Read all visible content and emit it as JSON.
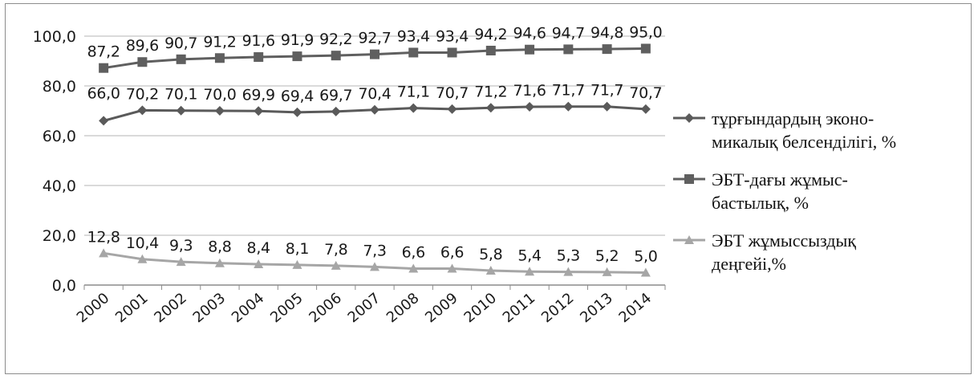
{
  "colors": {
    "activity": "#5a5a5a",
    "employment": "#5f5f5f",
    "unemployment": "#a6a6a6",
    "gridline": "#b5b5b5",
    "axis": "#8c8c8c"
  },
  "chart_data": {
    "type": "line",
    "x": [
      "2000",
      "2001",
      "2002",
      "2003",
      "2004",
      "2005",
      "2006",
      "2007",
      "2008",
      "2009",
      "2010",
      "2011",
      "2012",
      "2013",
      "2014"
    ],
    "ylim": [
      0,
      100
    ],
    "yticks": [
      "0,0",
      "20,0",
      "40,0",
      "60,0",
      "80,0",
      "100,0"
    ],
    "grid": true,
    "legend_position": "right",
    "series": [
      {
        "name": "тұрғындардың эконо-микалық белсенділігі, %",
        "marker": "diamond",
        "values": [
          66.0,
          70.2,
          70.1,
          70.0,
          69.9,
          69.4,
          69.7,
          70.4,
          71.1,
          70.7,
          71.2,
          71.6,
          71.7,
          71.7,
          70.7
        ],
        "labels": [
          "66,0",
          "70,2",
          "70,1",
          "70,0",
          "69,9",
          "69,4",
          "69,7",
          "70,4",
          "71,1",
          "70,7",
          "71,2",
          "71,6",
          "71,7",
          "71,7",
          "70,7"
        ]
      },
      {
        "name": "ЭБТ-дағы жұмыс-бастылық, %",
        "marker": "square",
        "values": [
          87.2,
          89.6,
          90.7,
          91.2,
          91.6,
          91.9,
          92.2,
          92.7,
          93.4,
          93.4,
          94.2,
          94.6,
          94.7,
          94.8,
          95.0
        ],
        "labels": [
          "87,2",
          "89,6",
          "90,7",
          "91,2",
          "91,6",
          "91,9",
          "92,2",
          "92,7",
          "93,4",
          "93,4",
          "94,2",
          "94,6",
          "94,7",
          "94,8",
          "95,0"
        ]
      },
      {
        "name": "ЭБТ жұмыссыздық деңгейі,%",
        "marker": "triangle",
        "values": [
          12.8,
          10.4,
          9.3,
          8.8,
          8.4,
          8.1,
          7.8,
          7.3,
          6.6,
          6.6,
          5.8,
          5.4,
          5.3,
          5.2,
          5.0
        ],
        "labels": [
          "12,8",
          "10,4",
          "9,3",
          "8,8",
          "8,4",
          "8,1",
          "7,8",
          "7,3",
          "6,6",
          "6,6",
          "5,8",
          "5,4",
          "5,3",
          "5,2",
          "5,0"
        ]
      }
    ]
  },
  "legend": {
    "items": [
      {
        "line1": "тұрғындардың эконо-",
        "line2": "микалық белсенділігі, %"
      },
      {
        "line1": "ЭБТ-дағы жұмыс-",
        "line2": "бастылық, %"
      },
      {
        "line1": "ЭБТ жұмыссыздық",
        "line2": "деңгейі,%"
      }
    ]
  }
}
